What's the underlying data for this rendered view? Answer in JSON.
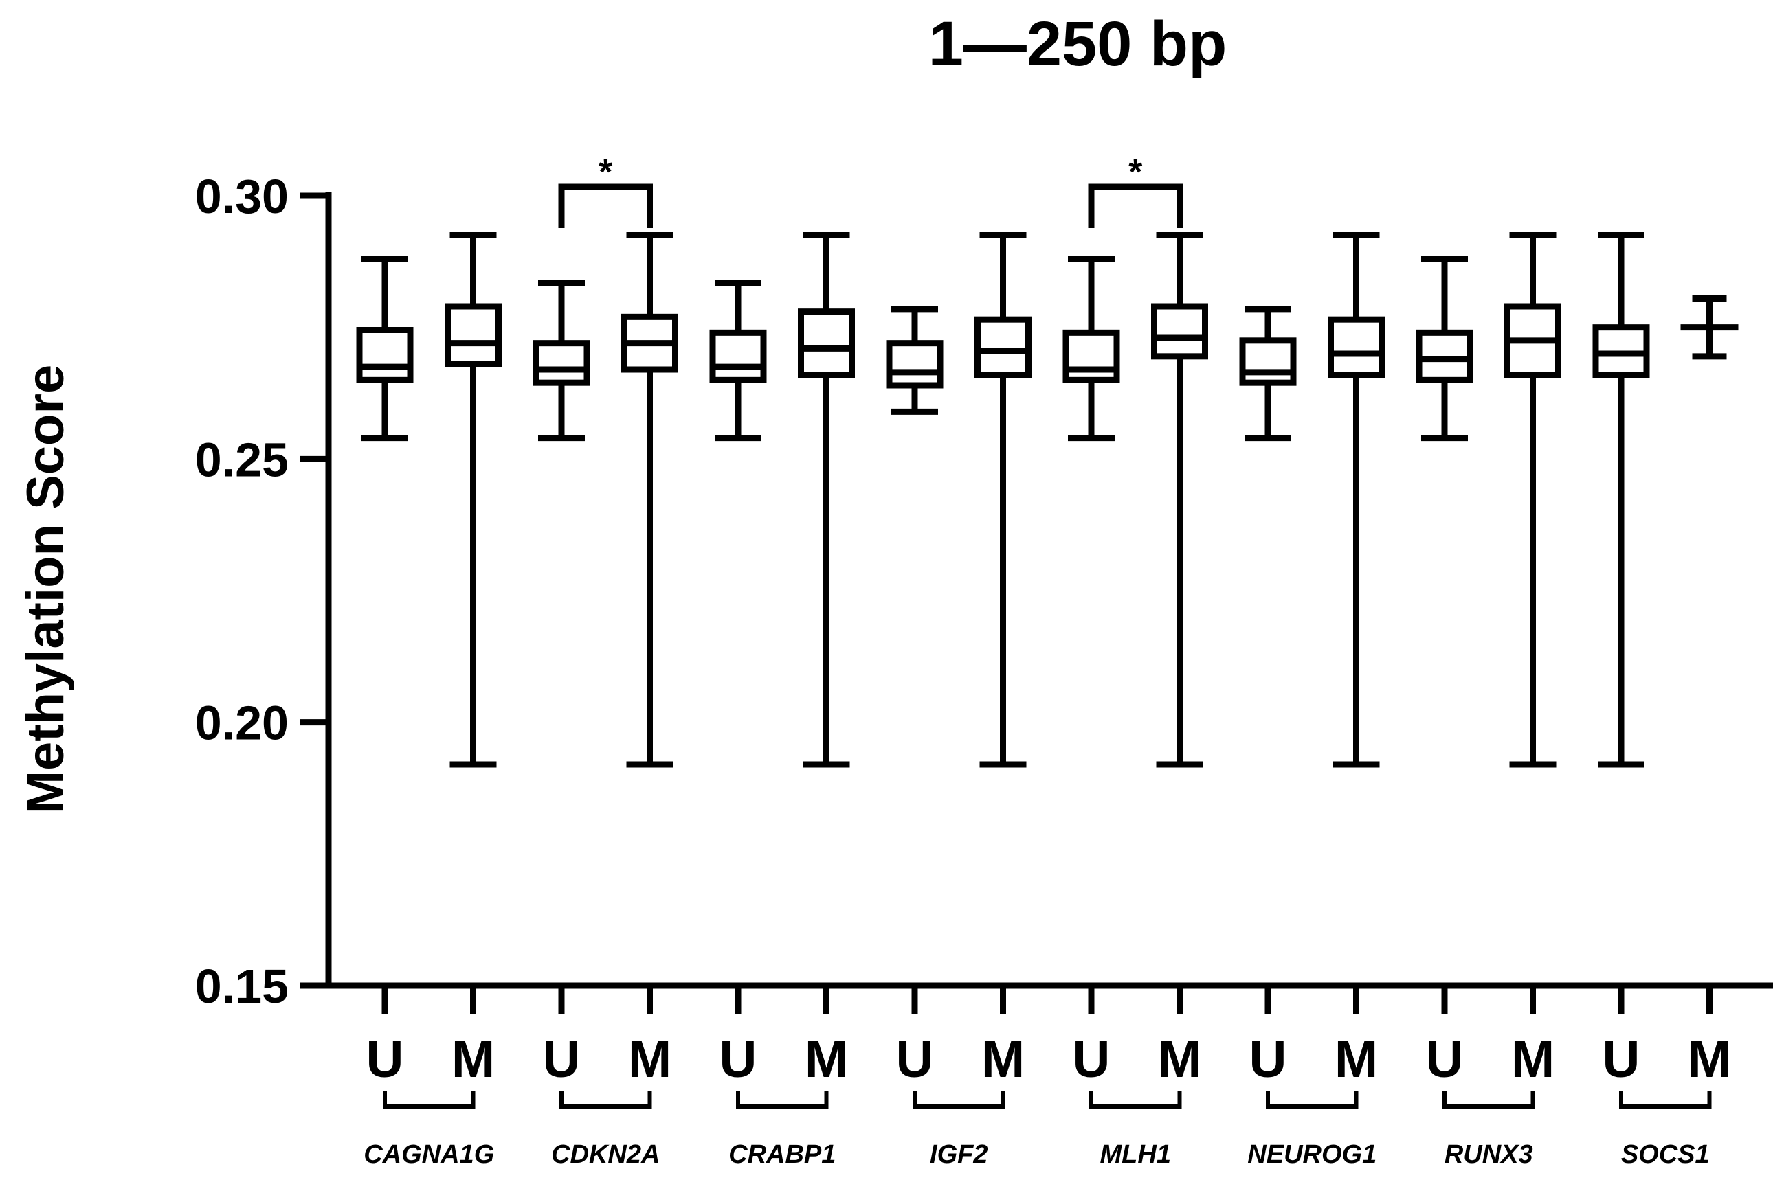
{
  "chart_data": {
    "type": "box",
    "title": "1—250 bp",
    "xlabel": "",
    "ylabel": "Methylation Score",
    "ylim": [
      0.15,
      0.3
    ],
    "yticks": [
      "0.15",
      "0.20",
      "0.25",
      "0.30"
    ],
    "ytick_values": [
      0.15,
      0.2,
      0.25,
      0.3
    ],
    "grid": false,
    "legend": "none",
    "categories": [
      "U",
      "M",
      "U",
      "M",
      "U",
      "M",
      "U",
      "M",
      "U",
      "M",
      "U",
      "M",
      "U",
      "M",
      "U",
      "M"
    ],
    "groups": [
      {
        "name": "CAGNA1G",
        "categories": [
          "U",
          "M"
        ]
      },
      {
        "name": "CDKN2A",
        "categories": [
          "U",
          "M"
        ]
      },
      {
        "name": "CRABP1",
        "categories": [
          "U",
          "M"
        ]
      },
      {
        "name": "IGF2",
        "categories": [
          "U",
          "M"
        ]
      },
      {
        "name": "MLH1",
        "categories": [
          "U",
          "M"
        ]
      },
      {
        "name": "NEUROG1",
        "categories": [
          "U",
          "M"
        ]
      },
      {
        "name": "RUNX3",
        "categories": [
          "U",
          "M"
        ]
      },
      {
        "name": "SOCS1",
        "categories": [
          "U",
          "M"
        ]
      }
    ],
    "boxes": [
      {
        "min": 0.254,
        "q1": 0.265,
        "median": 0.2675,
        "q3": 0.2745,
        "max": 0.288
      },
      {
        "min": 0.192,
        "q1": 0.268,
        "median": 0.272,
        "q3": 0.279,
        "max": 0.2925
      },
      {
        "min": 0.254,
        "q1": 0.2645,
        "median": 0.267,
        "q3": 0.272,
        "max": 0.2835
      },
      {
        "min": 0.192,
        "q1": 0.267,
        "median": 0.272,
        "q3": 0.277,
        "max": 0.2925
      },
      {
        "min": 0.254,
        "q1": 0.265,
        "median": 0.2675,
        "q3": 0.274,
        "max": 0.2835
      },
      {
        "min": 0.192,
        "q1": 0.266,
        "median": 0.271,
        "q3": 0.278,
        "max": 0.2925
      },
      {
        "min": 0.259,
        "q1": 0.264,
        "median": 0.2665,
        "q3": 0.272,
        "max": 0.2785
      },
      {
        "min": 0.192,
        "q1": 0.266,
        "median": 0.2705,
        "q3": 0.2765,
        "max": 0.2925
      },
      {
        "min": 0.254,
        "q1": 0.265,
        "median": 0.267,
        "q3": 0.274,
        "max": 0.288
      },
      {
        "min": 0.192,
        "q1": 0.2695,
        "median": 0.273,
        "q3": 0.279,
        "max": 0.2925
      },
      {
        "min": 0.254,
        "q1": 0.2645,
        "median": 0.2665,
        "q3": 0.2725,
        "max": 0.2785
      },
      {
        "min": 0.192,
        "q1": 0.266,
        "median": 0.27,
        "q3": 0.2765,
        "max": 0.2925
      },
      {
        "min": 0.254,
        "q1": 0.265,
        "median": 0.269,
        "q3": 0.274,
        "max": 0.288
      },
      {
        "min": 0.192,
        "q1": 0.266,
        "median": 0.2725,
        "q3": 0.279,
        "max": 0.2925
      },
      {
        "min": 0.192,
        "q1": 0.266,
        "median": 0.27,
        "q3": 0.275,
        "max": 0.2925
      },
      {
        "min": 0.2695,
        "q1": null,
        "median": 0.275,
        "q3": null,
        "max": 0.2805
      }
    ],
    "significance": [
      {
        "from": 2,
        "to": 3,
        "label": "*"
      },
      {
        "from": 8,
        "to": 9,
        "label": "*"
      }
    ]
  }
}
